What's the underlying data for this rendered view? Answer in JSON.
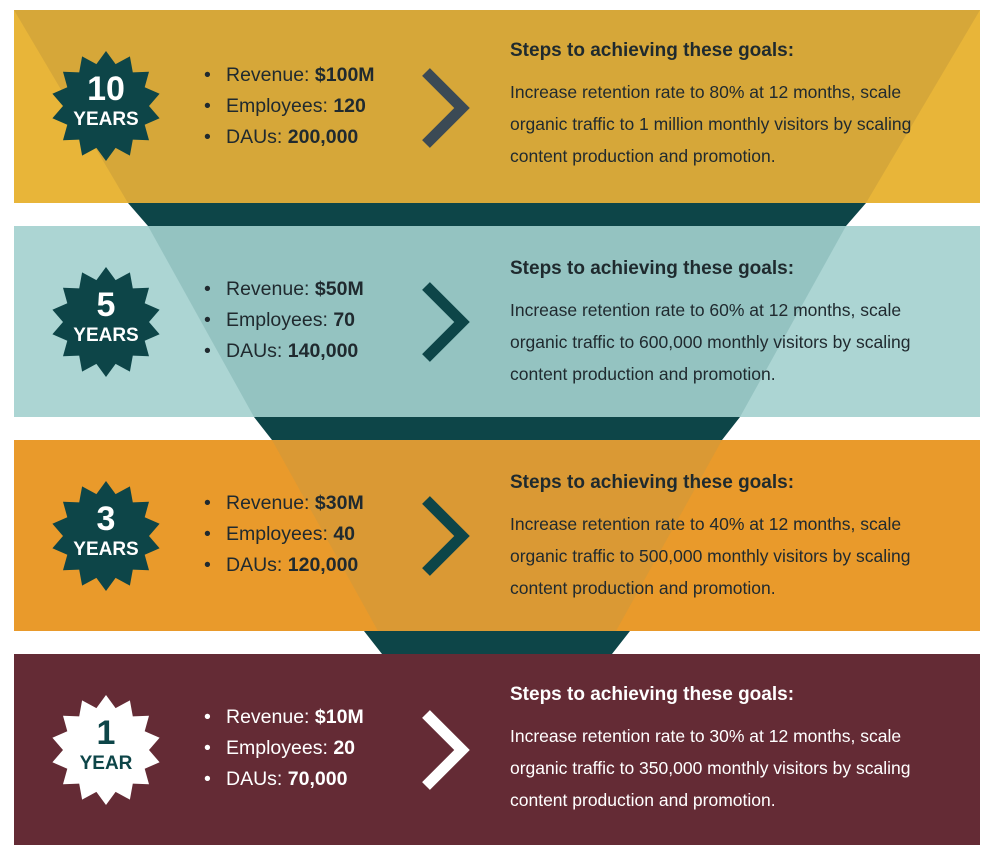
{
  "colors": {
    "band_10": "#e8b539",
    "band_5": "#acd5d3",
    "band_3": "#e99a2b",
    "band_1": "#642b35",
    "funnel_dark": "#0d4548",
    "badge_dark": "#0d4548",
    "badge_light": "#ffffff",
    "text_dark": "#1f2a2e",
    "text_light": "#ffffff"
  },
  "icons": {
    "badge": "starburst-badge-icon",
    "arrow": "chevron-right-icon"
  },
  "tiers": [
    {
      "number": "10",
      "unit": "YEARS",
      "revenue_label": "Revenue:",
      "revenue_value": "$100M",
      "employees_label": "Employees:",
      "employees_value": "120",
      "daus_label": "DAUs:",
      "daus_value": "200,000",
      "steps_title": "Steps to achieving these goals:",
      "steps_text": "Increase retention rate to 80% at 12 months, scale organic traffic to 1 million monthly visitors by scaling content production and promotion."
    },
    {
      "number": "5",
      "unit": "YEARS",
      "revenue_label": "Revenue:",
      "revenue_value": "$50M",
      "employees_label": "Employees:",
      "employees_value": "70",
      "daus_label": "DAUs:",
      "daus_value": "140,000",
      "steps_title": "Steps to achieving these goals:",
      "steps_text": "Increase retention rate to 60% at 12 months, scale organic traffic to 600,000 monthly visitors by scaling content production and promotion."
    },
    {
      "number": "3",
      "unit": "YEARS",
      "revenue_label": "Revenue:",
      "revenue_value": "$30M",
      "employees_label": "Employees:",
      "employees_value": "40",
      "daus_label": "DAUs:",
      "daus_value": "120,000",
      "steps_title": "Steps to achieving these goals:",
      "steps_text": "Increase retention rate to 40% at 12 months, scale organic traffic to 500,000 monthly visitors by scaling content production and promotion."
    },
    {
      "number": "1",
      "unit": "YEAR",
      "revenue_label": "Revenue:",
      "revenue_value": "$10M",
      "employees_label": "Employees:",
      "employees_value": "20",
      "daus_label": "DAUs:",
      "daus_value": "70,000",
      "steps_title": "Steps to achieving these goals:",
      "steps_text": "Increase retention rate to 30% at 12 months, scale organic traffic to 350,000 monthly visitors by scaling content production and promotion."
    }
  ]
}
